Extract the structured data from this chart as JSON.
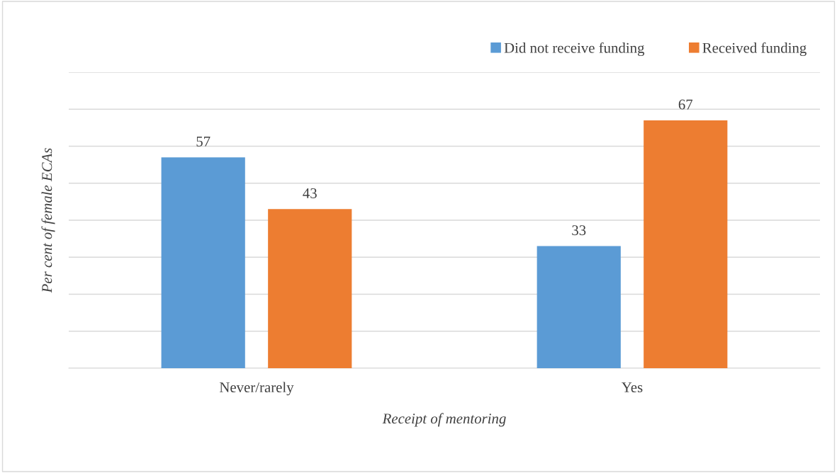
{
  "chart_data": {
    "type": "bar",
    "xlabel": "Receipt of mentoring",
    "ylabel": "Per cent of female ECAs",
    "categories": [
      "Never/rarely",
      "Yes"
    ],
    "series": [
      {
        "name": "Did not receive funding",
        "color": "#5b9bd5",
        "values": [
          57,
          33
        ]
      },
      {
        "name": "Received funding",
        "color": "#ed7d31",
        "values": [
          43,
          67
        ]
      }
    ],
    "ylim": [
      0,
      80
    ],
    "yticks": [
      {
        "value": 0,
        "label": null
      },
      {
        "value": 10,
        "label": null
      },
      {
        "value": 20,
        "label": null
      },
      {
        "value": 30,
        "label": null
      },
      {
        "value": 40,
        "label": null
      },
      {
        "value": 50,
        "label": null
      },
      {
        "value": 60,
        "label": null
      },
      {
        "value": 70,
        "label": null
      },
      {
        "value": 80,
        "label": null
      }
    ],
    "tick_labels": "x",
    "grid": "y",
    "legend": "top right",
    "data_labels": true
  }
}
